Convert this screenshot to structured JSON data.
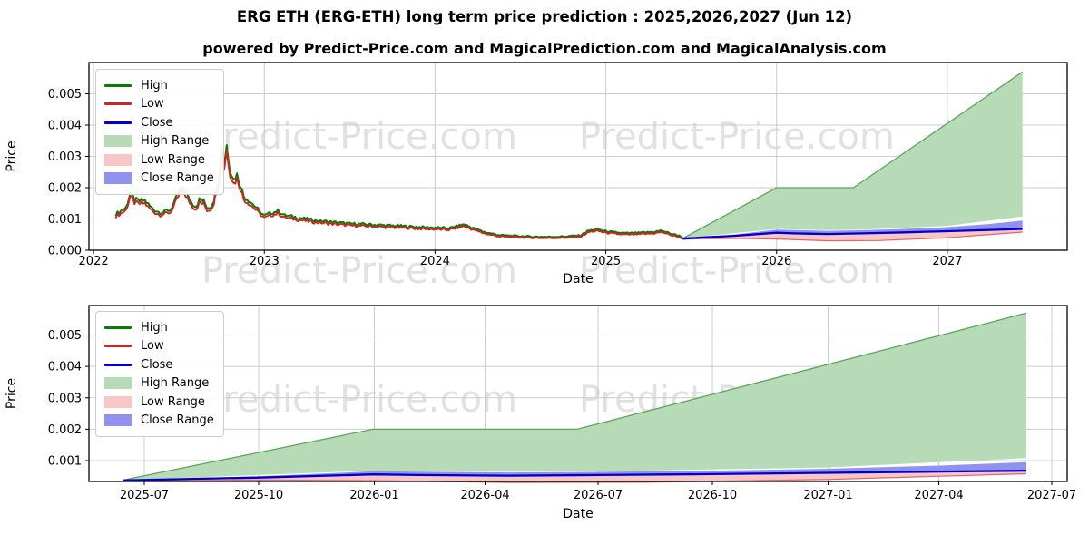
{
  "page": {
    "title": "ERG ETH (ERG-ETH) long term price prediction : 2025,2026,2027 (Jun 12)",
    "subtitle": "powered by Predict-Price.com and MagicalPrediction.com and MagicalAnalysis.com",
    "watermark": "Predict-Price.com"
  },
  "colors": {
    "high": "#067d06",
    "low": "#d42222",
    "close": "#0000cd",
    "high_range": "#b7dbb7",
    "high_range_edge": "#4f9e4f",
    "low_range": "#f9c6c6",
    "close_range": "#9192ef",
    "grid": "#cccccc",
    "spine": "#000000"
  },
  "legend": {
    "items": [
      {
        "label": "High",
        "type": "line",
        "color_key": "high"
      },
      {
        "label": "Low",
        "type": "line",
        "color_key": "low"
      },
      {
        "label": "Close",
        "type": "line",
        "color_key": "close"
      },
      {
        "label": "High Range",
        "type": "patch",
        "color_key": "high_range"
      },
      {
        "label": "Low Range",
        "type": "patch",
        "color_key": "low_range"
      },
      {
        "label": "Close Range",
        "type": "patch",
        "color_key": "close_range"
      }
    ]
  },
  "forecast": {
    "start_date": "2025-06-12",
    "end_date": "2027-06",
    "close_line": [
      [
        2025.45,
        0.00037
      ],
      [
        2025.6,
        0.00042
      ],
      [
        2025.75,
        0.00046
      ],
      [
        2026.0,
        0.00056
      ],
      [
        2026.1,
        0.00054
      ],
      [
        2026.3,
        0.00052
      ],
      [
        2026.5,
        0.00054
      ],
      [
        2026.75,
        0.00057
      ],
      [
        2027.0,
        0.00061
      ],
      [
        2027.25,
        0.00065
      ],
      [
        2027.44,
        0.00068
      ]
    ],
    "close_range_top": [
      [
        2025.45,
        0.00038
      ],
      [
        2025.75,
        0.0005
      ],
      [
        2026.0,
        0.00066
      ],
      [
        2026.3,
        0.00062
      ],
      [
        2026.5,
        0.00064
      ],
      [
        2026.75,
        0.00068
      ],
      [
        2027.0,
        0.00074
      ],
      [
        2027.25,
        0.00084
      ],
      [
        2027.44,
        0.00095
      ]
    ],
    "high_range_top": [
      [
        2025.45,
        0.00038
      ],
      [
        2026.0,
        0.002
      ],
      [
        2026.45,
        0.002
      ],
      [
        2027.44,
        0.0057
      ]
    ],
    "high_range_bottom": [
      [
        2025.45,
        0.00038
      ],
      [
        2026.0,
        0.00068
      ],
      [
        2026.3,
        0.00064
      ],
      [
        2026.5,
        0.00066
      ],
      [
        2027.0,
        0.00078
      ],
      [
        2027.44,
        0.00108
      ]
    ],
    "low_range_bottom": [
      [
        2025.45,
        0.00036
      ],
      [
        2025.75,
        0.00038
      ],
      [
        2026.0,
        0.00036
      ],
      [
        2026.3,
        0.0003
      ],
      [
        2026.6,
        0.00031
      ],
      [
        2027.0,
        0.0004
      ],
      [
        2027.44,
        0.00058
      ]
    ]
  },
  "historical": {
    "high_factor": 1.05,
    "low_points": [
      [
        2022.13,
        0.00108
      ],
      [
        2022.16,
        0.00118
      ],
      [
        2022.19,
        0.00128
      ],
      [
        2022.215,
        0.00172
      ],
      [
        2022.24,
        0.00152
      ],
      [
        2022.27,
        0.00148
      ],
      [
        2022.3,
        0.0015
      ],
      [
        2022.33,
        0.00132
      ],
      [
        2022.36,
        0.0012
      ],
      [
        2022.39,
        0.00113
      ],
      [
        2022.42,
        0.00117
      ],
      [
        2022.45,
        0.00121
      ],
      [
        2022.48,
        0.00152
      ],
      [
        2022.505,
        0.0018
      ],
      [
        2022.53,
        0.00185
      ],
      [
        2022.555,
        0.00158
      ],
      [
        2022.58,
        0.0014
      ],
      [
        2022.6,
        0.00132
      ],
      [
        2022.62,
        0.00152
      ],
      [
        2022.645,
        0.00148
      ],
      [
        2022.665,
        0.00128
      ],
      [
        2022.685,
        0.0013
      ],
      [
        2022.705,
        0.00152
      ],
      [
        2022.72,
        0.00188
      ],
      [
        2022.735,
        0.00225
      ],
      [
        2022.75,
        0.0032
      ],
      [
        2022.765,
        0.00262
      ],
      [
        2022.78,
        0.00318
      ],
      [
        2022.8,
        0.00245
      ],
      [
        2022.82,
        0.00213
      ],
      [
        2022.84,
        0.00228
      ],
      [
        2022.86,
        0.00198
      ],
      [
        2022.88,
        0.00162
      ],
      [
        2022.91,
        0.0015
      ],
      [
        2022.94,
        0.00135
      ],
      [
        2022.97,
        0.00118
      ],
      [
        2023.0,
        0.00103
      ],
      [
        2023.04,
        0.00112
      ],
      [
        2023.08,
        0.00118
      ],
      [
        2023.12,
        0.00104
      ],
      [
        2023.16,
        0.00101
      ],
      [
        2023.2,
        0.00097
      ],
      [
        2023.25,
        0.00093
      ],
      [
        2023.3,
        0.00089
      ],
      [
        2023.4,
        0.00084
      ],
      [
        2023.5,
        0.00079
      ],
      [
        2023.6,
        0.00077
      ],
      [
        2023.7,
        0.00074
      ],
      [
        2023.8,
        0.00072
      ],
      [
        2023.9,
        0.00069
      ],
      [
        2024.0,
        0.00067
      ],
      [
        2024.08,
        0.00065
      ],
      [
        2024.17,
        0.00077
      ],
      [
        2024.22,
        0.00066
      ],
      [
        2024.3,
        0.00052
      ],
      [
        2024.38,
        0.00044
      ],
      [
        2024.46,
        0.00042
      ],
      [
        2024.55,
        0.0004
      ],
      [
        2024.65,
        0.00039
      ],
      [
        2024.75,
        0.0004
      ],
      [
        2024.85,
        0.00043
      ],
      [
        2024.9,
        0.00058
      ],
      [
        2024.95,
        0.00062
      ],
      [
        2025.0,
        0.00056
      ],
      [
        2025.06,
        0.00052
      ],
      [
        2025.12,
        0.0005
      ],
      [
        2025.2,
        0.00051
      ],
      [
        2025.28,
        0.00054
      ],
      [
        2025.33,
        0.00058
      ],
      [
        2025.37,
        0.0005
      ],
      [
        2025.42,
        0.00044
      ],
      [
        2025.45,
        0.00038
      ]
    ]
  },
  "chart_data": [
    {
      "id": "main-chart",
      "type": "line",
      "title": "",
      "xlabel": "Date",
      "ylabel": "Price",
      "xlim": [
        2021.973,
        2027.702
      ],
      "ylim": [
        0,
        0.006
      ],
      "grid": true,
      "legend_position": "upper left",
      "x_ticks": [
        {
          "label": "2022",
          "value": 2022
        },
        {
          "label": "2023",
          "value": 2023
        },
        {
          "label": "2024",
          "value": 2024
        },
        {
          "label": "2025",
          "value": 2025
        },
        {
          "label": "2026",
          "value": 2026
        },
        {
          "label": "2027",
          "value": 2027
        }
      ],
      "y_ticks": [
        {
          "label": "0.000",
          "value": 0
        },
        {
          "label": "0.001",
          "value": 0.001
        },
        {
          "label": "0.002",
          "value": 0.002
        },
        {
          "label": "0.003",
          "value": 0.003
        },
        {
          "label": "0.004",
          "value": 0.004
        },
        {
          "label": "0.005",
          "value": 0.005
        }
      ],
      "series_note": "historical High/Low 2022-02 to 2025-06 plus forecast ranges to 2027-06",
      "has_historical": true
    },
    {
      "id": "forecast-chart",
      "type": "area",
      "title": "",
      "xlabel": "Date",
      "ylabel": "Price",
      "xlim": [
        2025.374,
        2027.53
      ],
      "ylim": [
        0.000335,
        0.00594
      ],
      "grid": true,
      "legend_position": "upper left",
      "x_ticks": [
        {
          "label": "2025-07",
          "value": 2025.496
        },
        {
          "label": "2025-10",
          "value": 2025.748
        },
        {
          "label": "2026-01",
          "value": 2026.003
        },
        {
          "label": "2026-04",
          "value": 2026.247
        },
        {
          "label": "2026-07",
          "value": 2026.496
        },
        {
          "label": "2026-10",
          "value": 2026.748
        },
        {
          "label": "2027-01",
          "value": 2027.003
        },
        {
          "label": "2027-04",
          "value": 2027.247
        },
        {
          "label": "2027-07",
          "value": 2027.496
        }
      ],
      "y_ticks": [
        {
          "label": "0.001",
          "value": 0.001
        },
        {
          "label": "0.002",
          "value": 0.002
        },
        {
          "label": "0.003",
          "value": 0.003
        },
        {
          "label": "0.004",
          "value": 0.004
        },
        {
          "label": "0.005",
          "value": 0.005
        }
      ],
      "series_note": "forecast only: close line rises 0.0004 to 0.0007, high range up to 0.0057",
      "has_historical": false
    }
  ]
}
